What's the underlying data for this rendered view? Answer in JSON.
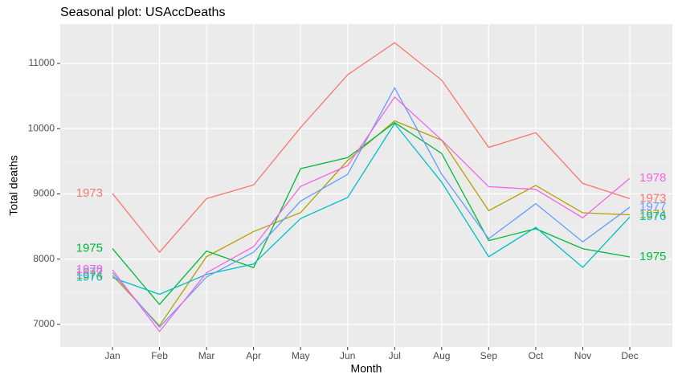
{
  "chart_data": {
    "type": "line",
    "title": "Seasonal plot: USAccDeaths",
    "x_label": "Month",
    "y_label": "Total deaths",
    "categories": [
      "Jan",
      "Feb",
      "Mar",
      "Apr",
      "May",
      "Jun",
      "Jul",
      "Aug",
      "Sep",
      "Oct",
      "Nov",
      "Dec"
    ],
    "series": [
      {
        "name": "1973",
        "color": "#F8766D",
        "values": [
          9007,
          8106,
          8928,
          9137,
          10017,
          10826,
          11317,
          10744,
          9713,
          9938,
          9161,
          8927
        ]
      },
      {
        "name": "1974",
        "color": "#B79F00",
        "values": [
          7750,
          6981,
          8038,
          8422,
          8714,
          9512,
          10120,
          9823,
          8743,
          9129,
          8710,
          8680
        ]
      },
      {
        "name": "1975",
        "color": "#00BA38",
        "values": [
          8162,
          7306,
          8124,
          7870,
          9387,
          9556,
          10093,
          9620,
          8285,
          8466,
          8160,
          8034
        ]
      },
      {
        "name": "1976",
        "color": "#00BFC4",
        "values": [
          7717,
          7461,
          7767,
          7925,
          8623,
          8945,
          10078,
          9179,
          8037,
          8488,
          7874,
          8647
        ]
      },
      {
        "name": "1977",
        "color": "#619CFF",
        "values": [
          7792,
          6957,
          7726,
          8106,
          8890,
          9299,
          10625,
          9302,
          8314,
          8850,
          8265,
          8796
        ]
      },
      {
        "name": "1978",
        "color": "#F564E3",
        "values": [
          7836,
          6892,
          7791,
          8192,
          9115,
          9434,
          10484,
          9827,
          9110,
          9070,
          8633,
          9240
        ]
      }
    ],
    "ylim": [
      6655,
      11603
    ],
    "yticks": [
      7000,
      8000,
      9000,
      10000,
      11000
    ],
    "grid": true
  }
}
